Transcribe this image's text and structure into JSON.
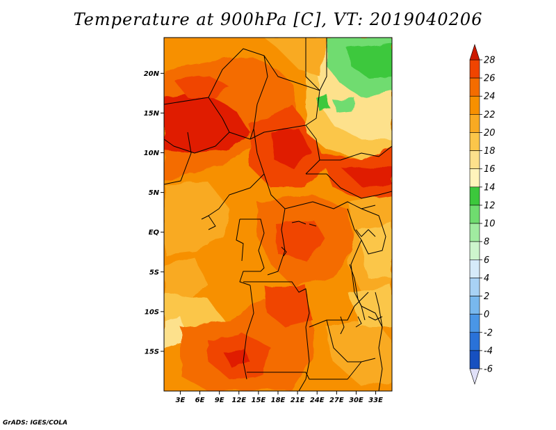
{
  "title": "Temperature at 900hPa [C], VT: 2019040206",
  "credit": "GrADS: IGES/COLA",
  "map": {
    "lat_labels": [
      "20N",
      "15N",
      "10N",
      "5N",
      "EQ",
      "5S",
      "10S",
      "15S"
    ],
    "lon_labels": [
      "3E",
      "6E",
      "9E",
      "12E",
      "15E",
      "18E",
      "21E",
      "24E",
      "27E",
      "30E",
      "33E"
    ],
    "extent": {
      "lon_min": 0.5,
      "lon_max": 35.5,
      "lat_min": -20,
      "lat_max": 24.5
    }
  },
  "colorbar": {
    "levels": [
      "28",
      "26",
      "24",
      "22",
      "20",
      "18",
      "16",
      "14",
      "12",
      "10",
      "8",
      "6",
      "4",
      "2",
      "0",
      "-2",
      "-4",
      "-6"
    ],
    "colors": [
      "#e01a00",
      "#f04400",
      "#f46c00",
      "#f79000",
      "#f9aa22",
      "#fbc64a",
      "#fde18c",
      "#fff4bb",
      "#3cc83c",
      "#6fdc6f",
      "#a0ebA0",
      "#cdf5cd",
      "#d6ebfa",
      "#a8d2f5",
      "#78b8ee",
      "#4a96e6",
      "#2a72d8",
      "#1750c0",
      "#0c36a0",
      "#0a1f74"
    ],
    "over_color": "#cc1a00",
    "under_color": "#e0e0f8"
  }
}
